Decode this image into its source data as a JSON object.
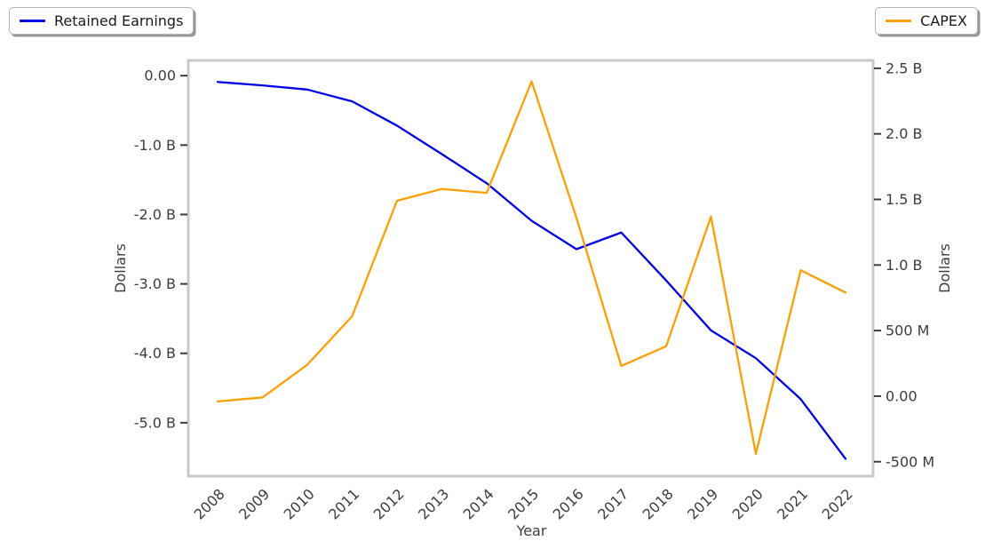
{
  "legends": {
    "left": {
      "label": "Retained Earnings"
    },
    "right": {
      "label": "CAPEX"
    }
  },
  "chart_data": {
    "type": "line",
    "x": [
      2008,
      2009,
      2010,
      2011,
      2012,
      2013,
      2014,
      2015,
      2016,
      2017,
      2018,
      2019,
      2020,
      2021,
      2022
    ],
    "x_tick_labels": [
      "2008",
      "2009",
      "2010",
      "2011",
      "2012",
      "2013",
      "2014",
      "2015",
      "2016",
      "2017",
      "2018",
      "2019",
      "2020",
      "2021",
      "2022"
    ],
    "xlabel": "Year",
    "series": [
      {
        "name": "Retained Earnings",
        "axis": "left",
        "color": "#0000ee",
        "values": [
          -0.09,
          -0.14,
          -0.2,
          -0.37,
          -0.72,
          -1.13,
          -1.55,
          -2.09,
          -2.5,
          -2.26,
          -2.95,
          -3.67,
          -4.07,
          -4.66,
          -5.52
        ]
      },
      {
        "name": "CAPEX",
        "axis": "right",
        "color": "#ff9f00",
        "values": [
          -0.04,
          -0.01,
          0.24,
          0.61,
          1.49,
          1.58,
          1.55,
          2.4,
          1.36,
          0.23,
          0.38,
          1.37,
          -0.44,
          0.96,
          0.79
        ]
      }
    ],
    "left_axis": {
      "label": "Dollars",
      "ylim": [
        -5.77,
        0.22
      ],
      "ticks": [
        {
          "label": "0.00",
          "value": 0
        },
        {
          "label": "-1.0 B",
          "value": -1.0
        },
        {
          "label": "-2.0 B",
          "value": -2.0
        },
        {
          "label": "-3.0 B",
          "value": -3.0
        },
        {
          "label": "-4.0 B",
          "value": -4.0
        },
        {
          "label": "-5.0 B",
          "value": -5.0
        }
      ]
    },
    "right_axis": {
      "label": "Dollars",
      "ylim": [
        -0.61,
        2.56
      ],
      "ticks": [
        {
          "label": "2.5 B",
          "value": 2.5
        },
        {
          "label": "2.0 B",
          "value": 2.0
        },
        {
          "label": "1.5 B",
          "value": 1.5
        },
        {
          "label": "1.0 B",
          "value": 1.0
        },
        {
          "label": "500 M",
          "value": 0.5
        },
        {
          "label": "0.00",
          "value": 0
        },
        {
          "label": "-500 M",
          "value": -0.5
        }
      ]
    },
    "grid": false,
    "legend_positions": {
      "left": "top-left",
      "right": "top-right"
    },
    "frame_color": "#c8c8c8",
    "tick_color": "#3c3c3c",
    "text_color": "#3c3c3c"
  }
}
